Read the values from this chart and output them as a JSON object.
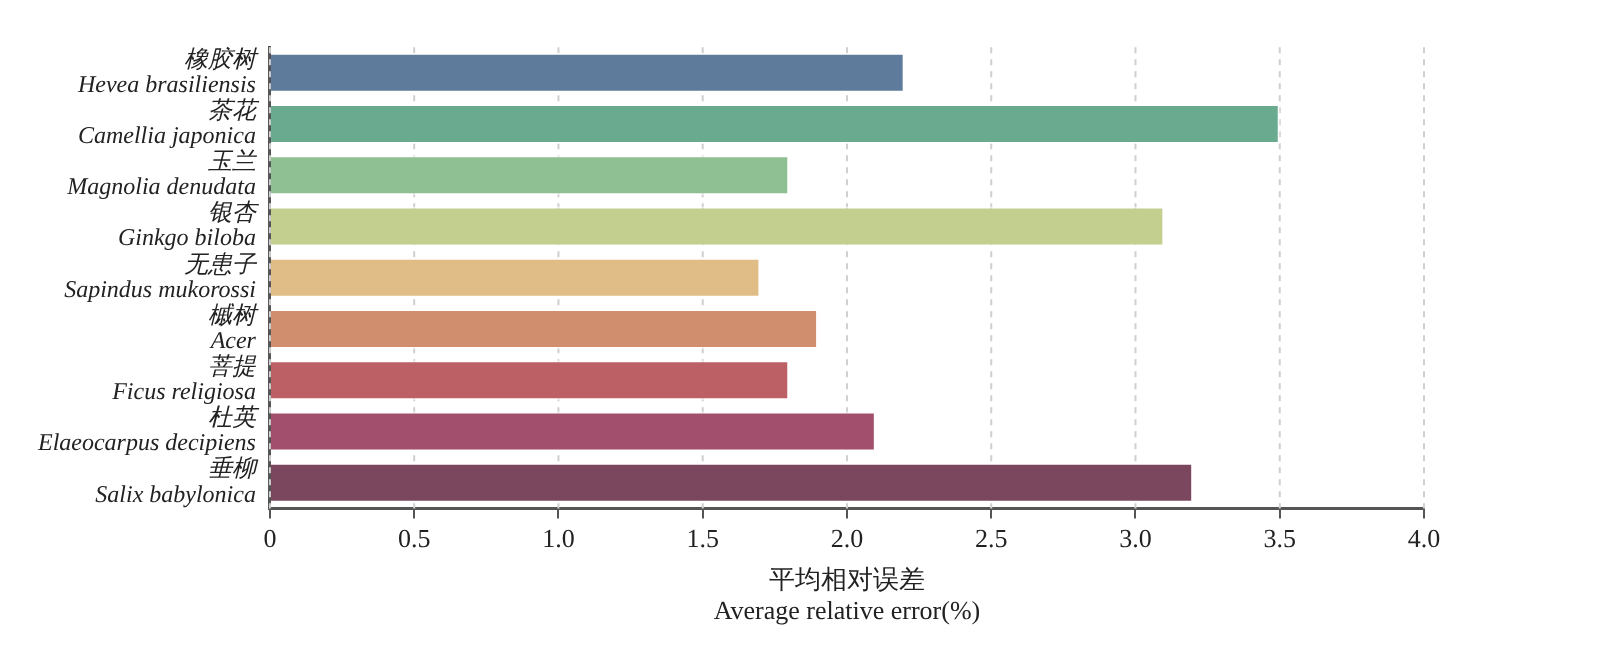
{
  "chart_data": {
    "type": "bar",
    "orientation": "horizontal",
    "xlabel": "平均相对误差\nAverage relative error(%)",
    "categories": [
      "橡胶树\nHevea brasiliensis",
      "茶花\nCamellia japonica",
      "玉兰\nMagnolia denudata",
      "银杏\nGinkgo biloba",
      "无患子\nSapindus mukorossi",
      "槭树\nAcer",
      "菩提\nFicus religiosa",
      "杜英\nElaeocarpus decipiens",
      "垂柳\nSalix babylonica"
    ],
    "values": [
      2.2,
      3.5,
      1.8,
      3.1,
      1.7,
      1.9,
      1.8,
      2.1,
      3.2
    ],
    "colors": [
      "#5f7b9b",
      "#6aab8f",
      "#8fc093",
      "#c2cf8e",
      "#e0bd87",
      "#d08e6f",
      "#bd6065",
      "#a14f6c",
      "#7b475e"
    ],
    "xlim": [
      0,
      4.0
    ],
    "xticks": [
      0,
      0.5,
      {
        "value": 1,
        "label": "1.0"
      },
      1.5,
      {
        "value": 2,
        "label": "2.0"
      },
      2.5,
      {
        "value": 3,
        "label": "3.0"
      },
      3.5,
      {
        "value": 4,
        "label": "4.0"
      }
    ],
    "grid": "x"
  }
}
